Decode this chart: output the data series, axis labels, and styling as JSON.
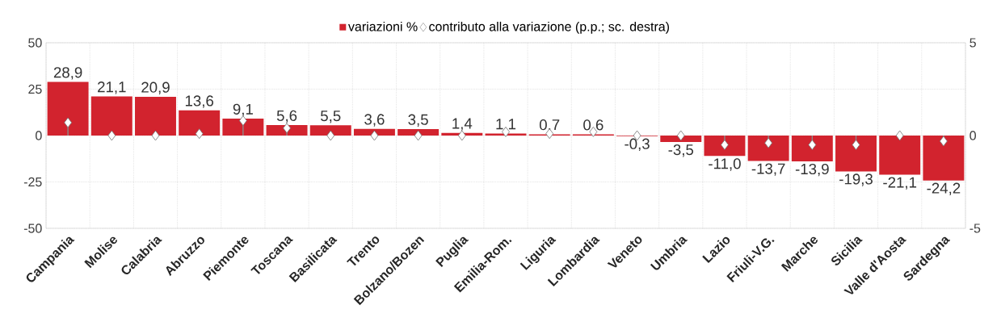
{
  "chart_data": {
    "type": "bar",
    "categories": [
      "Campania",
      "Molise",
      "Calabria",
      "Abruzzo",
      "Piemonte",
      "Toscana",
      "Basilicata",
      "Trento",
      "Bolzano/Bozen",
      "Puglia",
      "Emilia-Rom.",
      "Liguria",
      "Lombardia",
      "Veneto",
      "Umbria",
      "Lazio",
      "Friuli-V.G.",
      "Marche",
      "Sicilia",
      "Valle d'Aosta",
      "Sardegna"
    ],
    "legend": "top",
    "grid": true,
    "marker": "diamond",
    "ylim": [
      -50,
      50
    ],
    "yticks": [
      -50,
      -25,
      0,
      25,
      50
    ],
    "y2lim": [
      -5,
      5
    ],
    "y2ticks": [
      -5,
      0,
      5
    ],
    "series": [
      {
        "name": "variazioni %",
        "color": "#d2232e",
        "values": [
          28.9,
          21.1,
          20.9,
          13.6,
          9.1,
          5.6,
          5.5,
          3.6,
          3.5,
          1.4,
          1.1,
          0.7,
          0.6,
          -0.3,
          -3.5,
          -11.0,
          -13.7,
          -13.9,
          -19.3,
          -21.1,
          -24.2
        ],
        "value_labels": [
          "28,9",
          "21,1",
          "20,9",
          "13,6",
          "9,1",
          "5,6",
          "5,5",
          "3,6",
          "3,5",
          "1,4",
          "1,1",
          "0,7",
          "0,6",
          "-0,3",
          "-3,5",
          "-11,0",
          "-13,7",
          "-13,9",
          "-19,3",
          "-21,1",
          "-24,2"
        ]
      },
      {
        "name": "contributo alla variazione (p.p.; sc. destra)",
        "type": "lollipop",
        "axis": "y2",
        "color": "#ffffff",
        "values": [
          0.7,
          0.0,
          0.0,
          0.1,
          0.8,
          0.4,
          0.0,
          0.0,
          0.0,
          0.0,
          0.2,
          0.1,
          0.2,
          0.0,
          0.0,
          -0.5,
          -0.4,
          -0.5,
          -0.5,
          0.0,
          -0.3
        ]
      }
    ]
  }
}
